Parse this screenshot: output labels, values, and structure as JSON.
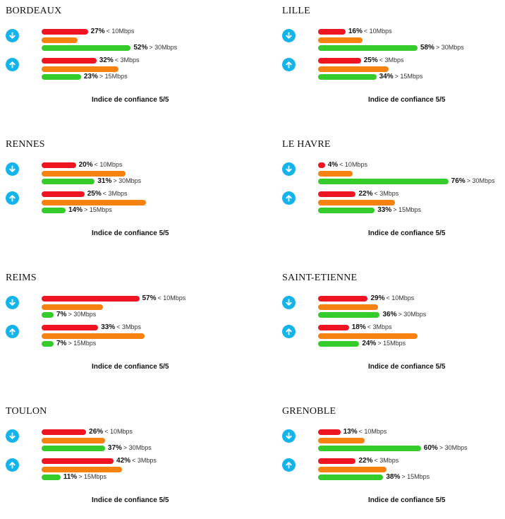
{
  "chart_data": [
    {
      "type": "bar",
      "title": "BORDEAUX",
      "download": {
        "low_pct": 27,
        "low_label": "< 10Mbps",
        "high_pct": 52,
        "high_label": "> 30Mbps"
      },
      "upload": {
        "low_pct": 32,
        "low_label": "< 3Mbps",
        "high_pct": 23,
        "high_label": "> 15Mbps"
      },
      "confidence": "Indice de confiance 5/5"
    },
    {
      "type": "bar",
      "title": "LILLE",
      "download": {
        "low_pct": 16,
        "low_label": "< 10Mbps",
        "high_pct": 58,
        "high_label": "> 30Mbps"
      },
      "upload": {
        "low_pct": 25,
        "low_label": "< 3Mbps",
        "high_pct": 34,
        "high_label": "> 15Mbps"
      },
      "confidence": "Indice de confiance 5/5"
    },
    {
      "type": "bar",
      "title": "RENNES",
      "download": {
        "low_pct": 20,
        "low_label": "< 10Mbps",
        "high_pct": 31,
        "high_label": "> 30Mbps"
      },
      "upload": {
        "low_pct": 25,
        "low_label": "< 3Mbps",
        "high_pct": 14,
        "high_label": "> 15Mbps"
      },
      "confidence": "Indice de confiance 5/5"
    },
    {
      "type": "bar",
      "title": "LE HAVRE",
      "download": {
        "low_pct": 4,
        "low_label": "< 10Mbps",
        "high_pct": 76,
        "high_label": "> 30Mbps"
      },
      "upload": {
        "low_pct": 22,
        "low_label": "< 3Mbps",
        "high_pct": 33,
        "high_label": "> 15Mbps"
      },
      "confidence": "Indice de confiance 5/5"
    },
    {
      "type": "bar",
      "title": "REIMS",
      "download": {
        "low_pct": 57,
        "low_label": "< 10Mbps",
        "high_pct": 7,
        "high_label": "> 30Mbps"
      },
      "upload": {
        "low_pct": 33,
        "low_label": "< 3Mbps",
        "high_pct": 7,
        "high_label": "> 15Mbps"
      },
      "confidence": "Indice de confiance 5/5"
    },
    {
      "type": "bar",
      "title": "SAINT-ETIENNE",
      "download": {
        "low_pct": 29,
        "low_label": "< 10Mbps",
        "high_pct": 36,
        "high_label": "> 30Mbps"
      },
      "upload": {
        "low_pct": 18,
        "low_label": "< 3Mbps",
        "high_pct": 24,
        "high_label": "> 15Mbps"
      },
      "confidence": "Indice de confiance 5/5"
    },
    {
      "type": "bar",
      "title": "TOULON",
      "download": {
        "low_pct": 26,
        "low_label": "< 10Mbps",
        "high_pct": 37,
        "high_label": "> 30Mbps"
      },
      "upload": {
        "low_pct": 42,
        "low_label": "< 3Mbps",
        "high_pct": 11,
        "high_label": "> 15Mbps"
      },
      "confidence": "Indice de confiance 5/5"
    },
    {
      "type": "bar",
      "title": "GRENOBLE",
      "download": {
        "low_pct": 13,
        "low_label": "< 10Mbps",
        "high_pct": 60,
        "high_label": "> 30Mbps"
      },
      "upload": {
        "low_pct": 22,
        "low_label": "< 3Mbps",
        "high_pct": 38,
        "high_label": "> 15Mbps"
      },
      "confidence": "Indice de confiance 5/5"
    }
  ],
  "icons": {
    "download": "arrow-down-icon",
    "upload": "arrow-up-icon"
  },
  "colors": {
    "low": "#ee1422",
    "mid": "#f7820f",
    "high": "#35cc2b",
    "icon": "#14b4ea"
  }
}
